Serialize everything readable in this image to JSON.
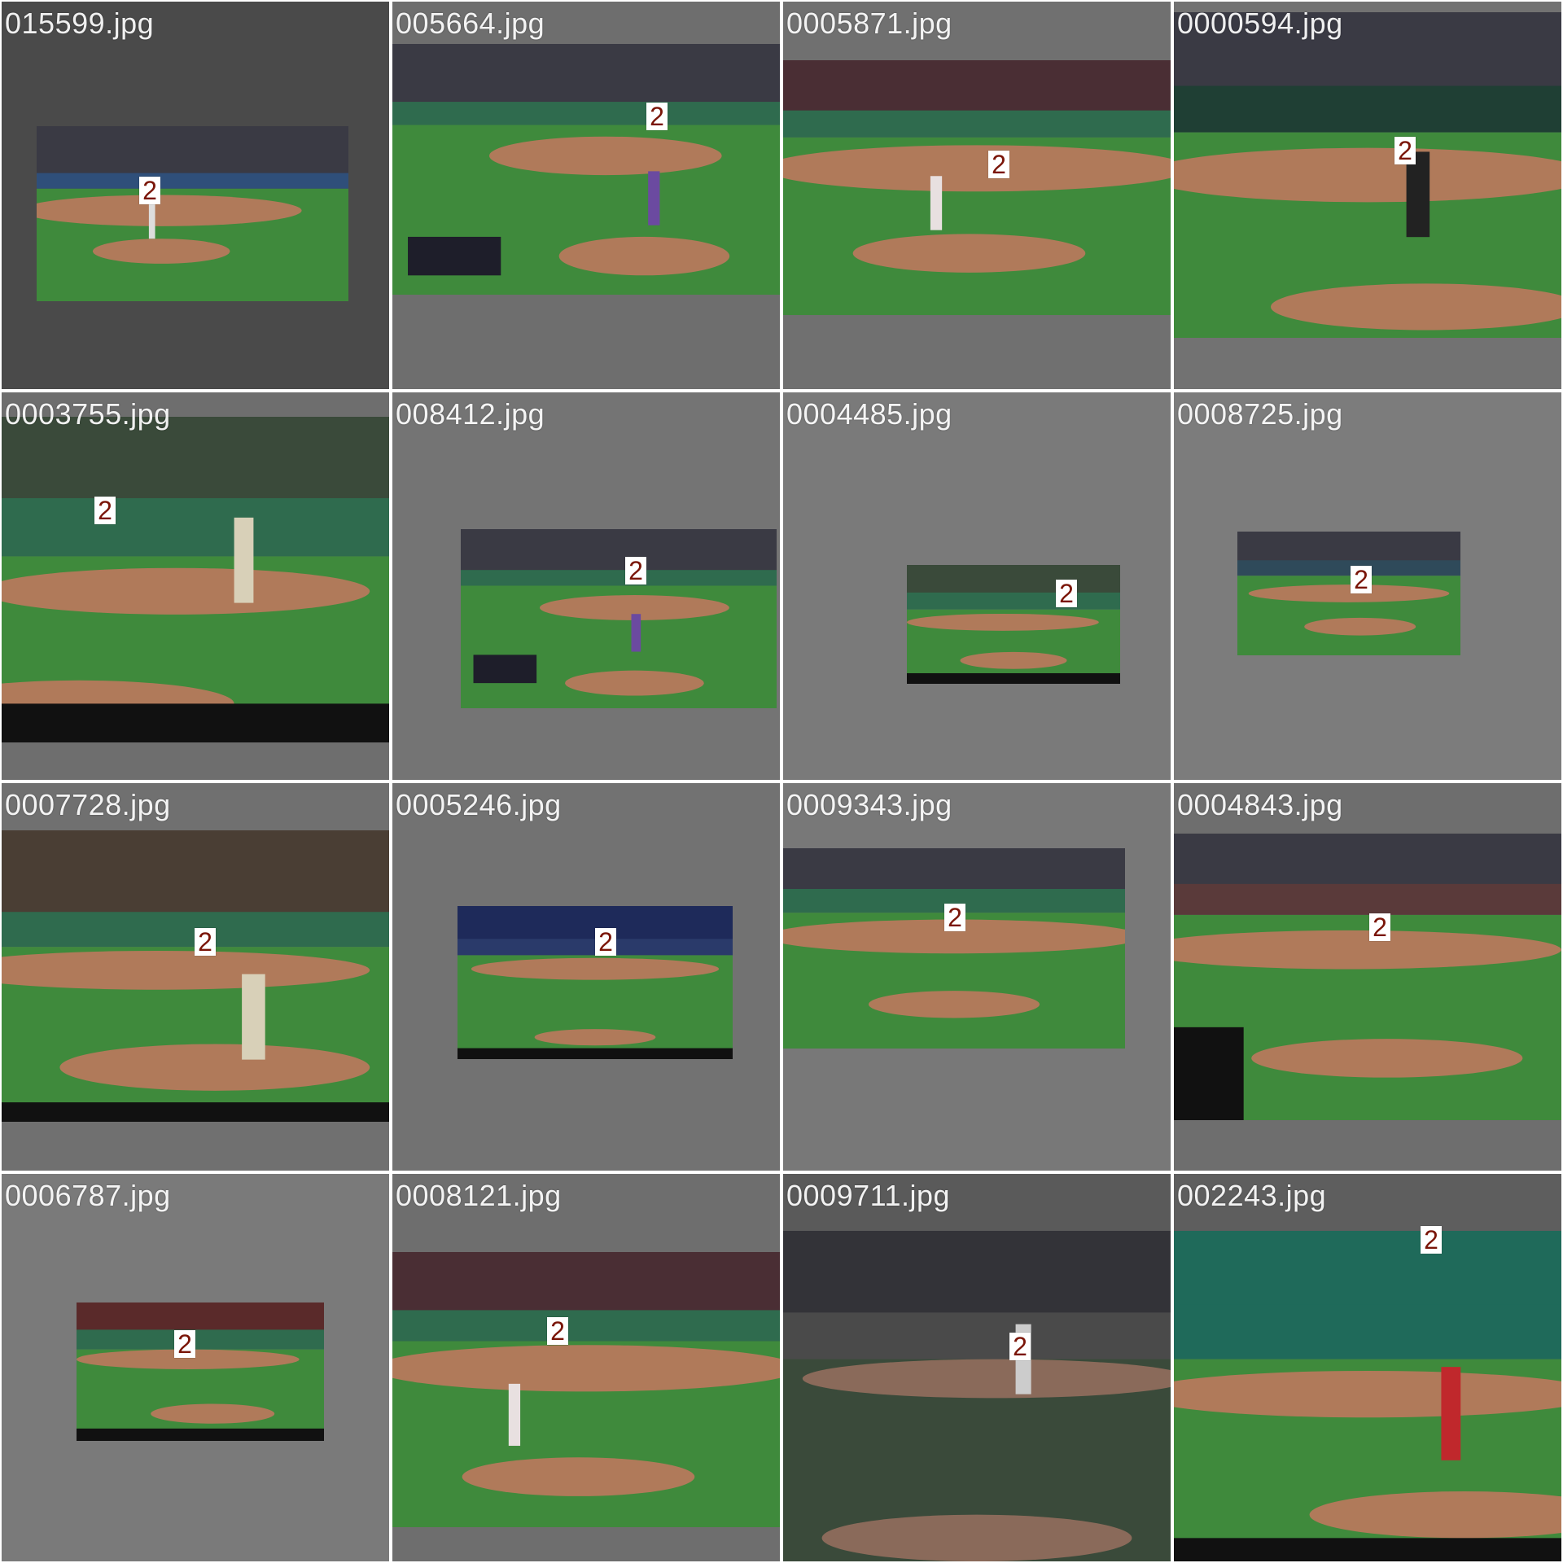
{
  "grid": {
    "tiles": [
      {
        "filename": "015599.jpg",
        "badge": "2"
      },
      {
        "filename": "005664.jpg",
        "badge": "2"
      },
      {
        "filename": "0005871.jpg",
        "badge": "2"
      },
      {
        "filename": "0000594.jpg",
        "badge": "2"
      },
      {
        "filename": "0003755.jpg",
        "badge": "2"
      },
      {
        "filename": "008412.jpg",
        "badge": "2"
      },
      {
        "filename": "0004485.jpg",
        "badge": "2"
      },
      {
        "filename": "0008725.jpg",
        "badge": "2"
      },
      {
        "filename": "0007728.jpg",
        "badge": "2"
      },
      {
        "filename": "0005246.jpg",
        "badge": "2"
      },
      {
        "filename": "0009343.jpg",
        "badge": "2"
      },
      {
        "filename": "0004843.jpg",
        "badge": "2"
      },
      {
        "filename": "0006787.jpg",
        "badge": "2"
      },
      {
        "filename": "0008121.jpg",
        "badge": "2"
      },
      {
        "filename": "0009711.jpg",
        "badge": "2"
      },
      {
        "filename": "002243.jpg",
        "badge": "2"
      }
    ]
  },
  "colors": {
    "outfield_grass": "#3f8a3c",
    "infield_dirt": "#b07a5a",
    "wall": "#2f6b4e",
    "crowd": "#3a3a44"
  }
}
